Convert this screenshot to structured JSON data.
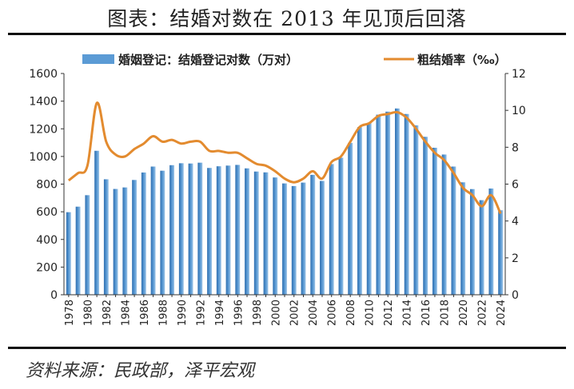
{
  "header": {
    "title": "图表：结婚对数在 2013 年见顶后回落"
  },
  "footer": {
    "source": "资料来源：民政部，泽平宏观"
  },
  "chart_data": {
    "type": "bar+line",
    "years": [
      1978,
      1979,
      1980,
      1981,
      1982,
      1983,
      1984,
      1985,
      1986,
      1987,
      1988,
      1989,
      1990,
      1991,
      1992,
      1993,
      1994,
      1995,
      1996,
      1997,
      1998,
      1999,
      2000,
      2001,
      2002,
      2003,
      2004,
      2005,
      2006,
      2007,
      2008,
      2009,
      2010,
      2011,
      2012,
      2013,
      2014,
      2015,
      2016,
      2017,
      2018,
      2019,
      2020,
      2021,
      2022,
      2023,
      2024
    ],
    "x_tick_labels": [
      "1978",
      "1980",
      "1982",
      "1984",
      "1986",
      "1988",
      "1990",
      "1992",
      "1994",
      "1996",
      "1998",
      "2000",
      "2002",
      "2004",
      "2006",
      "2008",
      "2010",
      "2012",
      "2014",
      "2016",
      "2018",
      "2020",
      "2022",
      "2024"
    ],
    "series": [
      {
        "name": "婚姻登记：结婚登记对数（万对）",
        "type": "bar",
        "axis": "left",
        "color": "#5b9bd5",
        "values": [
          597,
          637,
          720,
          1041,
          835,
          765,
          776,
          830,
          884,
          927,
          897,
          937,
          951,
          949,
          955,
          917,
          929,
          934,
          939,
          914,
          891,
          885,
          848,
          805,
          786,
          811,
          867,
          823,
          945,
          991,
          1098,
          1212,
          1241,
          1302,
          1324,
          1347,
          1307,
          1225,
          1142,
          1063,
          1014,
          927,
          813,
          764,
          684,
          768,
          611
        ]
      },
      {
        "name": "粗结婚率（‰）",
        "type": "line",
        "axis": "right",
        "color": "#e38b2f",
        "values": [
          6.2,
          6.6,
          7.0,
          10.4,
          8.3,
          7.6,
          7.5,
          7.9,
          8.2,
          8.6,
          8.3,
          8.4,
          8.2,
          8.3,
          8.3,
          7.8,
          7.8,
          7.7,
          7.7,
          7.4,
          7.1,
          7.0,
          6.7,
          6.3,
          6.1,
          6.3,
          6.7,
          6.3,
          7.2,
          7.5,
          8.3,
          9.1,
          9.3,
          9.7,
          9.8,
          9.9,
          9.6,
          9.0,
          8.3,
          7.7,
          7.3,
          6.6,
          5.8,
          5.4,
          4.8,
          5.4,
          4.4
        ]
      }
    ],
    "y_left": {
      "min": 0,
      "max": 1600,
      "ticks": [
        "0",
        "200",
        "400",
        "600",
        "800",
        "1000",
        "1200",
        "1400",
        "1600"
      ]
    },
    "y_right": {
      "min": 0,
      "max": 12,
      "ticks": [
        "0",
        "2",
        "4",
        "6",
        "8",
        "10",
        "12"
      ]
    },
    "legend": {
      "bar_label": "婚姻登记：结婚登记对数（万对）",
      "line_label": "粗结婚率（‰）"
    }
  }
}
